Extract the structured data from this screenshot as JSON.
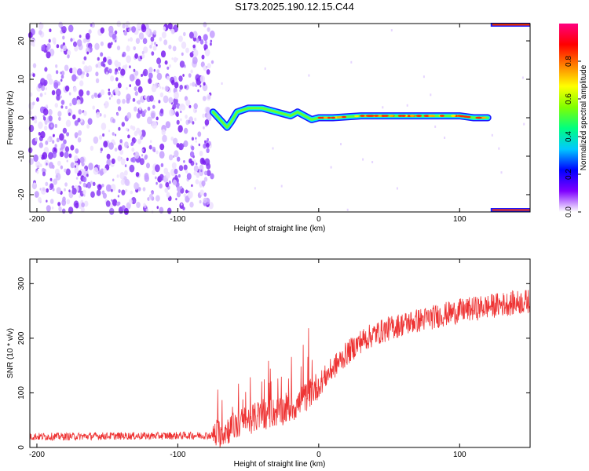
{
  "title": "S173.2025.190.12.15.C44",
  "chart_data": [
    {
      "type": "heatmap",
      "title": "S173.2025.190.12.15.C44",
      "xlabel": "Height of straight line (km)",
      "ylabel": "Frequency (Hz)",
      "xlim": [
        -205,
        150
      ],
      "ylim": [
        -24.5,
        24.5
      ],
      "xticks": [
        -200,
        -100,
        0,
        100
      ],
      "yticks": [
        20,
        10,
        0,
        -10,
        -20
      ],
      "colormap": [
        "#ffffff",
        "#7f00ff",
        "#0000ff",
        "#00c8ff",
        "#00ff80",
        "#80ff00",
        "#ffff00",
        "#ff8000",
        "#ff0000",
        "#ff0080"
      ],
      "colorbar": {
        "label": "Normalized spectral amplitude",
        "ticks": [
          "0.0",
          "0.2",
          "0.4",
          "0.6",
          "0.8"
        ],
        "range": [
          0,
          1
        ]
      },
      "noise_region_x": [
        -205,
        -75
      ],
      "signal_track": {
        "x": [
          -75,
          -70,
          -65,
          -62,
          -58,
          -50,
          -40,
          -30,
          -25,
          -20,
          -15,
          -10,
          -5,
          0,
          10,
          30,
          50,
          70,
          90,
          100,
          110,
          120
        ],
        "y": [
          1.5,
          -0.5,
          -2.5,
          -1,
          1.5,
          2.5,
          2.5,
          1.5,
          1,
          0.5,
          1.5,
          0.5,
          -0.5,
          0,
          0,
          0.5,
          0.5,
          0.5,
          0.5,
          0.5,
          0,
          0
        ]
      }
    },
    {
      "type": "line",
      "xlabel": "Height of straight line (km)",
      "ylabel": "SNR (10 * v/v)",
      "xlim": [
        -205,
        150
      ],
      "ylim": [
        0,
        345
      ],
      "xticks": [
        -200,
        -100,
        0,
        100
      ],
      "yticks": [
        0,
        100,
        200,
        300
      ],
      "color": "#ee3333",
      "series": [
        {
          "x": [
            -205,
            -180,
            -150,
            -120,
            -90,
            -75,
            -65,
            -55,
            -45,
            -35,
            -25,
            -15,
            -10,
            0,
            10,
            20,
            30,
            40,
            50,
            60,
            70,
            80,
            90,
            100,
            110,
            120,
            130,
            140,
            150
          ],
          "y": [
            20,
            20,
            21,
            21,
            22,
            22,
            32,
            45,
            55,
            62,
            68,
            78,
            90,
            115,
            145,
            172,
            195,
            208,
            218,
            226,
            232,
            238,
            244,
            250,
            254,
            258,
            262,
            265,
            268
          ]
        }
      ]
    }
  ]
}
